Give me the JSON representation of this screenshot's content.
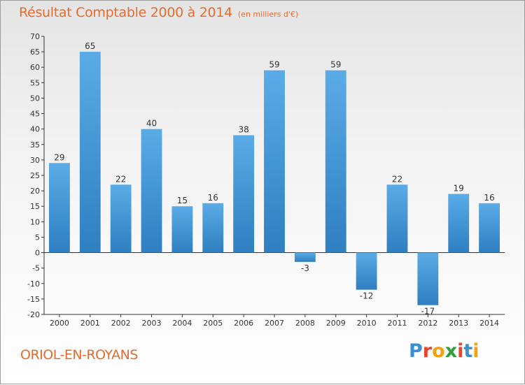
{
  "title": {
    "main": "Résultat Comptable 2000 à 2014",
    "unit": "(en milliers d'€)"
  },
  "city": "ORIOL-EN-ROYANS",
  "logo": {
    "text": "Proxiti",
    "letters": [
      "P",
      "r",
      "o",
      "x",
      "i",
      "t",
      "i"
    ],
    "colors": [
      "#3a8fd6",
      "#e8452c",
      "#f2a20d",
      "#2e9d3a",
      "#e8452c",
      "#3a8fd6",
      "#f2a20d"
    ]
  },
  "chart_data": {
    "type": "bar",
    "title": "Résultat Comptable 2000 à 2014",
    "subtitle": "(en milliers d'€)",
    "xlabel": "",
    "ylabel": "",
    "categories": [
      "2000",
      "2001",
      "2002",
      "2003",
      "2004",
      "2005",
      "2006",
      "2007",
      "2008",
      "2009",
      "2010",
      "2011",
      "2012",
      "2013",
      "2014"
    ],
    "values": [
      29,
      65,
      22,
      40,
      15,
      16,
      38,
      59,
      -3,
      59,
      -12,
      22,
      -17,
      19,
      16
    ],
    "ylim": [
      -20,
      70
    ],
    "ystep": 5,
    "grid": false,
    "colors": {
      "bar_top": "#5aabe6",
      "bar_bottom": "#2f7fc1",
      "axis": "#333333",
      "title": "#e46c32"
    }
  }
}
